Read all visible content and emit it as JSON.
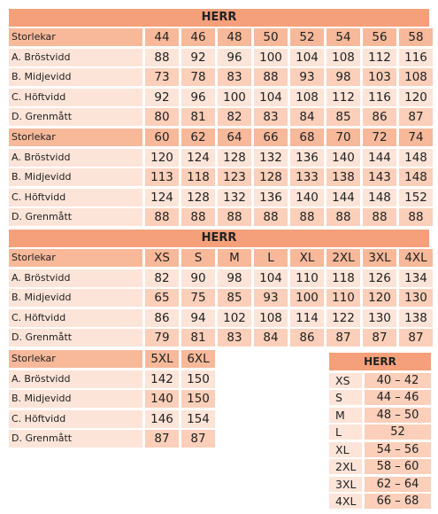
{
  "title": "HERR",
  "row_labels": [
    "Storlekar",
    "A. Bröstvidd",
    "B. Midjevidd",
    "C. Höftvidd",
    "D. Grenmått"
  ],
  "section1": {
    "title": "HERR",
    "tables": [
      {
        "sizes": [
          "44",
          "46",
          "48",
          "50",
          "52",
          "54",
          "56",
          "58"
        ],
        "rows": [
          [
            "88",
            "92",
            "96",
            "100",
            "104",
            "108",
            "112",
            "116"
          ],
          [
            "73",
            "78",
            "83",
            "88",
            "93",
            "98",
            "103",
            "108"
          ],
          [
            "92",
            "96",
            "100",
            "104",
            "108",
            "112",
            "116",
            "120"
          ],
          [
            "80",
            "81",
            "82",
            "83",
            "84",
            "85",
            "86",
            "87"
          ]
        ]
      },
      {
        "sizes": [
          "60",
          "62",
          "64",
          "66",
          "68",
          "70",
          "72",
          "74"
        ],
        "rows": [
          [
            "120",
            "124",
            "128",
            "132",
            "136",
            "140",
            "144",
            "148"
          ],
          [
            "113",
            "118",
            "123",
            "128",
            "133",
            "138",
            "143",
            "148"
          ],
          [
            "124",
            "128",
            "132",
            "136",
            "140",
            "144",
            "148",
            "152"
          ],
          [
            "88",
            "88",
            "88",
            "88",
            "88",
            "88",
            "88",
            "88"
          ]
        ]
      }
    ]
  },
  "section2": {
    "title": "HERR",
    "tables": [
      {
        "sizes": [
          "XS",
          "S",
          "M",
          "L",
          "XL",
          "2XL",
          "3XL",
          "4XL"
        ],
        "rows": [
          [
            "82",
            "90",
            "98",
            "104",
            "110",
            "118",
            "126",
            "134"
          ],
          [
            "65",
            "75",
            "85",
            "93",
            "100",
            "110",
            "120",
            "130"
          ],
          [
            "86",
            "94",
            "102",
            "108",
            "114",
            "122",
            "130",
            "138"
          ],
          [
            "79",
            "81",
            "83",
            "84",
            "86",
            "87",
            "87",
            "87"
          ]
        ]
      },
      {
        "sizes": [
          "5XL",
          "6XL"
        ],
        "rows": [
          [
            "142",
            "150"
          ],
          [
            "140",
            "150"
          ],
          [
            "146",
            "154"
          ],
          [
            "87",
            "87"
          ]
        ]
      }
    ]
  },
  "conversion": {
    "title": "HERR",
    "rows": [
      {
        "size": "XS",
        "range": "40 – 42"
      },
      {
        "size": "S",
        "range": "44 – 46"
      },
      {
        "size": "M",
        "range": "48 – 50"
      },
      {
        "size": "L",
        "range": "52"
      },
      {
        "size": "XL",
        "range": "54 – 56"
      },
      {
        "size": "2XL",
        "range": "58 – 60"
      },
      {
        "size": "3XL",
        "range": "62 – 64"
      },
      {
        "size": "4XL",
        "range": "66 – 68"
      }
    ]
  }
}
